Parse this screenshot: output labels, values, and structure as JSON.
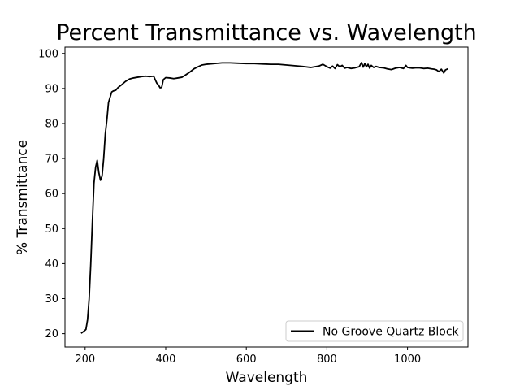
{
  "chart_data": {
    "type": "line",
    "title": "Percent Transmittance vs. Wavelength",
    "xlabel": "Wavelength",
    "ylabel": "% Transmittance",
    "xlim": [
      150,
      1150
    ],
    "ylim": [
      16.2,
      101.8
    ],
    "xticks": [
      200,
      400,
      600,
      800,
      1000
    ],
    "yticks": [
      20,
      30,
      40,
      50,
      60,
      70,
      80,
      90,
      100
    ],
    "grid": false,
    "legend_position": "lower-right",
    "series": [
      {
        "name": "No Groove Quartz Block",
        "color": "#000000",
        "x": [
          190,
          196,
          202,
          206,
          210,
          214,
          218,
          222,
          226,
          230,
          234,
          238,
          242,
          246,
          250,
          254,
          258,
          262,
          266,
          270,
          276,
          282,
          290,
          300,
          310,
          320,
          330,
          340,
          350,
          360,
          370,
          374,
          378,
          382,
          386,
          390,
          394,
          400,
          410,
          420,
          430,
          440,
          450,
          460,
          470,
          480,
          490,
          500,
          520,
          540,
          560,
          580,
          600,
          620,
          640,
          660,
          680,
          700,
          720,
          740,
          760,
          780,
          790,
          796,
          802,
          808,
          814,
          820,
          826,
          832,
          838,
          844,
          850,
          860,
          870,
          880,
          886,
          890,
          894,
          898,
          902,
          906,
          910,
          916,
          922,
          930,
          940,
          950,
          960,
          970,
          980,
          990,
          996,
          1000,
          1006,
          1012,
          1020,
          1030,
          1040,
          1050,
          1060,
          1066,
          1072,
          1078,
          1084,
          1090,
          1094,
          1100
        ],
        "y": [
          20.1,
          20.6,
          21.2,
          24.0,
          30.0,
          40.0,
          52.0,
          63.0,
          67.5,
          69.5,
          66.0,
          63.8,
          65.0,
          70.0,
          77.0,
          81.0,
          86.0,
          87.5,
          89.0,
          89.3,
          89.5,
          90.3,
          91.0,
          92.0,
          92.7,
          93.0,
          93.2,
          93.4,
          93.5,
          93.4,
          93.5,
          92.5,
          91.5,
          91.0,
          90.2,
          90.3,
          92.5,
          93.1,
          93.0,
          92.8,
          93.0,
          93.2,
          93.9,
          94.7,
          95.6,
          96.2,
          96.7,
          96.9,
          97.1,
          97.3,
          97.3,
          97.2,
          97.1,
          97.1,
          97.0,
          96.9,
          96.9,
          96.7,
          96.5,
          96.3,
          96.0,
          96.4,
          96.9,
          96.5,
          96.1,
          95.8,
          96.4,
          95.7,
          96.8,
          96.2,
          96.6,
          95.8,
          96.0,
          95.7,
          95.9,
          96.2,
          97.4,
          96.1,
          97.1,
          96.2,
          96.9,
          95.8,
          96.6,
          96.0,
          96.3,
          96.0,
          95.9,
          95.6,
          95.4,
          95.8,
          96.0,
          95.7,
          96.6,
          96.0,
          95.9,
          95.8,
          95.9,
          95.9,
          95.7,
          95.8,
          95.6,
          95.5,
          95.3,
          94.8,
          95.5,
          94.4,
          95.3,
          95.6
        ]
      }
    ]
  }
}
